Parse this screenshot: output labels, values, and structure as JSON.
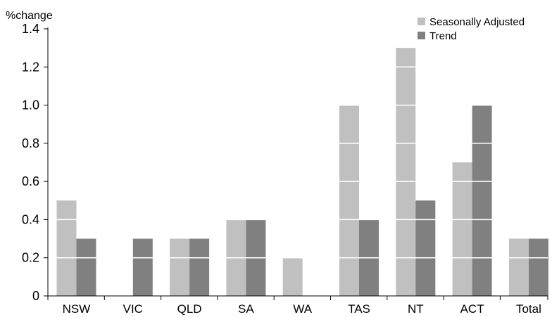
{
  "chart_data": {
    "type": "bar",
    "unit_label": "%change",
    "categories": [
      "NSW",
      "VIC",
      "QLD",
      "SA",
      "WA",
      "TAS",
      "NT",
      "ACT",
      "Total"
    ],
    "series": [
      {
        "name": "Seasonally Adjusted",
        "color": "#c0c0c0",
        "values": [
          0.5,
          0.0,
          0.3,
          0.4,
          0.2,
          1.0,
          1.3,
          0.7,
          0.3
        ]
      },
      {
        "name": "Trend",
        "color": "#808080",
        "values": [
          0.3,
          0.3,
          0.3,
          0.4,
          0.0,
          0.4,
          0.5,
          1.0,
          0.3
        ]
      }
    ],
    "y_ticks": [
      "0",
      "0.2",
      "0.4",
      "0.6",
      "0.8",
      "1.0",
      "1.2",
      "1.4"
    ],
    "ylim": [
      0,
      1.4
    ],
    "gridlines": "white, drawn over bars",
    "legend_position": "top-right"
  }
}
